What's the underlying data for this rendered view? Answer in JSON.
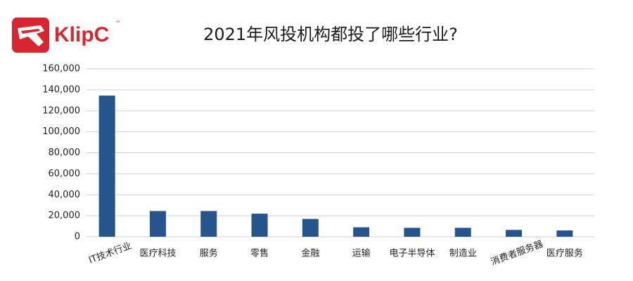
{
  "brand": {
    "name": "KlipC",
    "mark": "™"
  },
  "chart_data": {
    "type": "bar",
    "title": "2021年风投机构都投了哪些行业?",
    "categories": [
      "IT技术行业",
      "医疗科技",
      "服务",
      "零售",
      "金融",
      "运输",
      "电子半导体",
      "制造业",
      "消费者服务器",
      "医疗服务"
    ],
    "values": [
      134500,
      24500,
      24500,
      22000,
      17000,
      9000,
      8500,
      8500,
      6500,
      6000
    ],
    "color": "#26548d",
    "ylim": [
      0,
      160000
    ],
    "yticks": [
      0,
      {
        "value": 20000,
        "label": "20,000"
      },
      {
        "value": 40000,
        "label": "40,000"
      },
      {
        "value": 60000,
        "label": "60,000"
      },
      {
        "value": 80000,
        "label": "80,000"
      },
      {
        "value": 100000,
        "label": "100,000"
      },
      {
        "value": 120000,
        "label": "120,000"
      },
      {
        "value": 140000,
        "label": "140,000"
      },
      {
        "value": 160000,
        "label": "160,000"
      }
    ],
    "grid": true
  }
}
